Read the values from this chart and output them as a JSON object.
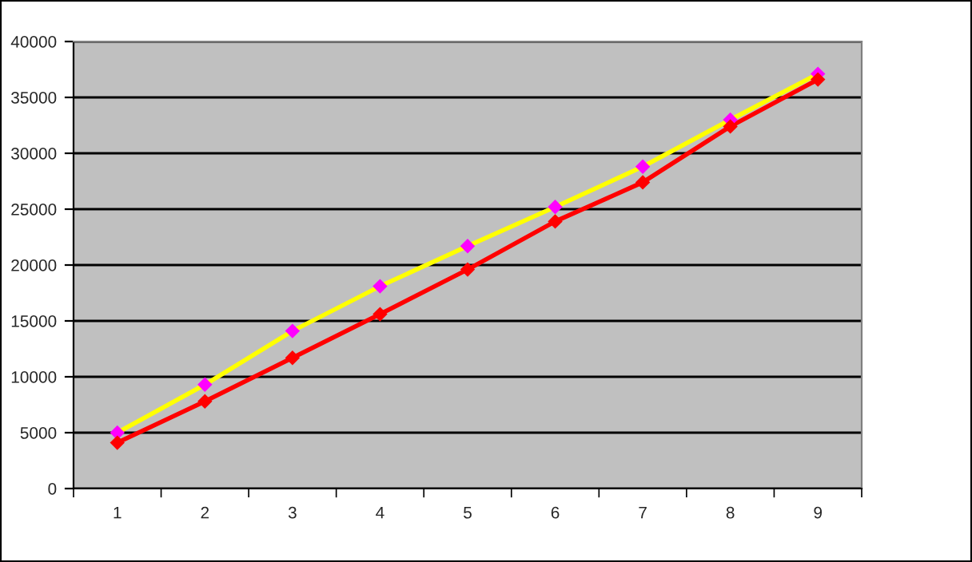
{
  "chart_data": {
    "type": "line",
    "categories": [
      "1",
      "2",
      "3",
      "4",
      "5",
      "6",
      "7",
      "8",
      "9"
    ],
    "series": [
      {
        "color": "#ffff00",
        "colors": [
          "#ff00ff",
          "#ff00ff",
          "#ff00ff",
          "#ff00ff",
          "#ff00ff",
          "#ff00ff",
          "#ff00ff",
          "#ff00ff",
          "#ff00ff"
        ],
        "values": [
          5000,
          9300,
          14100,
          18100,
          21700,
          25200,
          28800,
          33000,
          37100
        ]
      },
      {
        "color": "#ff0000",
        "values": [
          4100,
          7800,
          11700,
          15600,
          19600,
          23900,
          27400,
          32400,
          36600
        ]
      }
    ],
    "ylim": [
      0,
      40000
    ],
    "yticks": [
      0,
      5000,
      10000,
      15000,
      20000,
      25000,
      30000,
      35000,
      40000
    ],
    "grid": "y",
    "marker": "diamond",
    "line_style": "solid"
  }
}
